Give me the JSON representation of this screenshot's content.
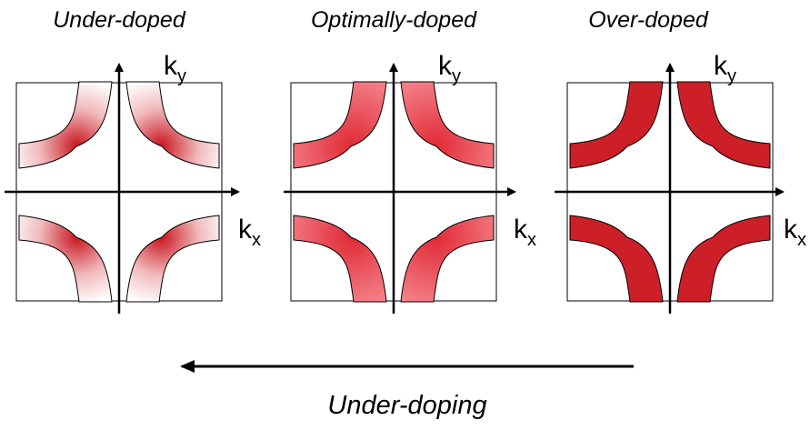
{
  "panels": [
    {
      "title": "Under-doped",
      "ky": {
        "base": "k",
        "sub": "y"
      },
      "kx": {
        "base": "k",
        "sub": "x"
      }
    },
    {
      "title": "Optimally-doped",
      "ky": {
        "base": "k",
        "sub": "y"
      },
      "kx": {
        "base": "k",
        "sub": "x"
      }
    },
    {
      "title": "Over-doped",
      "ky": {
        "base": "k",
        "sub": "y"
      },
      "kx": {
        "base": "k",
        "sub": "x"
      }
    }
  ],
  "arrow": {
    "label": "Under-doping"
  }
}
